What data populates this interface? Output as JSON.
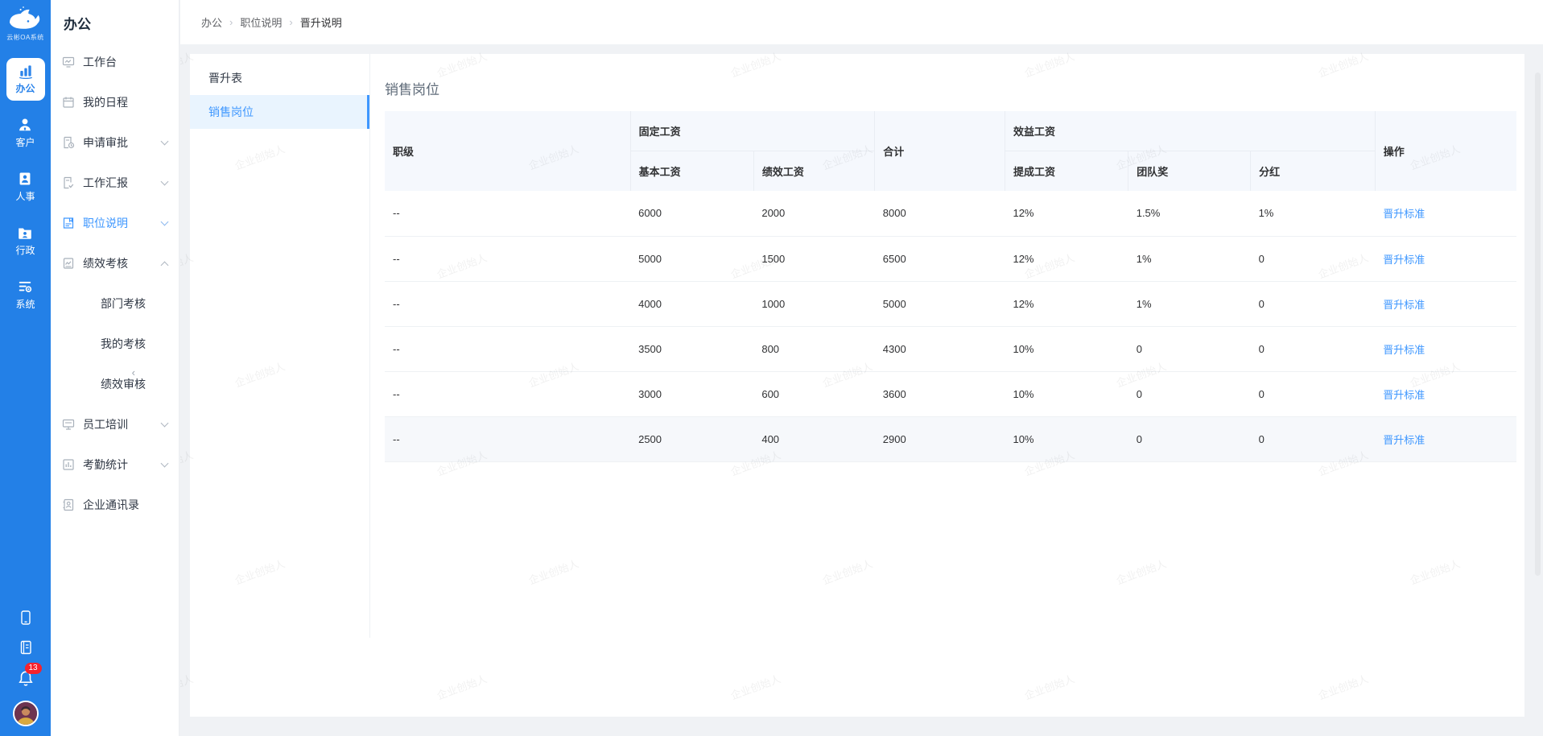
{
  "app": {
    "logo_text": "云彬OA系统"
  },
  "rail": {
    "items": [
      {
        "label": "办公"
      },
      {
        "label": "客户"
      },
      {
        "label": "人事"
      },
      {
        "label": "行政"
      },
      {
        "label": "系统"
      }
    ],
    "notification_count": "13"
  },
  "sidebar": {
    "title": "办公",
    "items": [
      {
        "label": "工作台"
      },
      {
        "label": "我的日程"
      },
      {
        "label": "申请审批"
      },
      {
        "label": "工作汇报"
      },
      {
        "label": "职位说明"
      },
      {
        "label": "绩效考核"
      },
      {
        "label": "部门考核"
      },
      {
        "label": "我的考核"
      },
      {
        "label": "绩效审核"
      },
      {
        "label": "员工培训"
      },
      {
        "label": "考勤统计"
      },
      {
        "label": "企业通讯录"
      }
    ]
  },
  "breadcrumb": {
    "separator": "›",
    "items": [
      "办公",
      "职位说明",
      "晋升说明"
    ]
  },
  "panel": {
    "header": "晋升表",
    "selected_item": "销售岗位"
  },
  "main": {
    "title": "销售岗位",
    "table": {
      "headers": {
        "level": "职级",
        "fixed_group": "固定工资",
        "base": "基本工资",
        "perf": "绩效工资",
        "total": "合计",
        "benefit_group": "效益工资",
        "commission": "提成工资",
        "team": "团队奖",
        "dividend": "分红",
        "action": "操作"
      },
      "rows": [
        {
          "level": "--",
          "base": "6000",
          "perf": "2000",
          "total": "8000",
          "commission": "12%",
          "team": "1.5%",
          "dividend": "1%"
        },
        {
          "level": "--",
          "base": "5000",
          "perf": "1500",
          "total": "6500",
          "commission": "12%",
          "team": "1%",
          "dividend": "0"
        },
        {
          "level": "--",
          "base": "4000",
          "perf": "1000",
          "total": "5000",
          "commission": "12%",
          "team": "1%",
          "dividend": "0"
        },
        {
          "level": "--",
          "base": "3500",
          "perf": "800",
          "total": "4300",
          "commission": "10%",
          "team": "0",
          "dividend": "0"
        },
        {
          "level": "--",
          "base": "3000",
          "perf": "600",
          "total": "3600",
          "commission": "10%",
          "team": "0",
          "dividend": "0"
        },
        {
          "level": "--",
          "base": "2500",
          "perf": "400",
          "total": "2900",
          "commission": "10%",
          "team": "0",
          "dividend": "0"
        }
      ],
      "action_label": "晋升标准"
    }
  },
  "watermark": {
    "text": "企业创始人"
  },
  "colors": {
    "rail_blue": "#2380e7",
    "accent_blue": "#2c84ea",
    "link_blue": "#3e97ff",
    "badge_red": "#f5222d",
    "header_bg": "#f5f8fd"
  }
}
